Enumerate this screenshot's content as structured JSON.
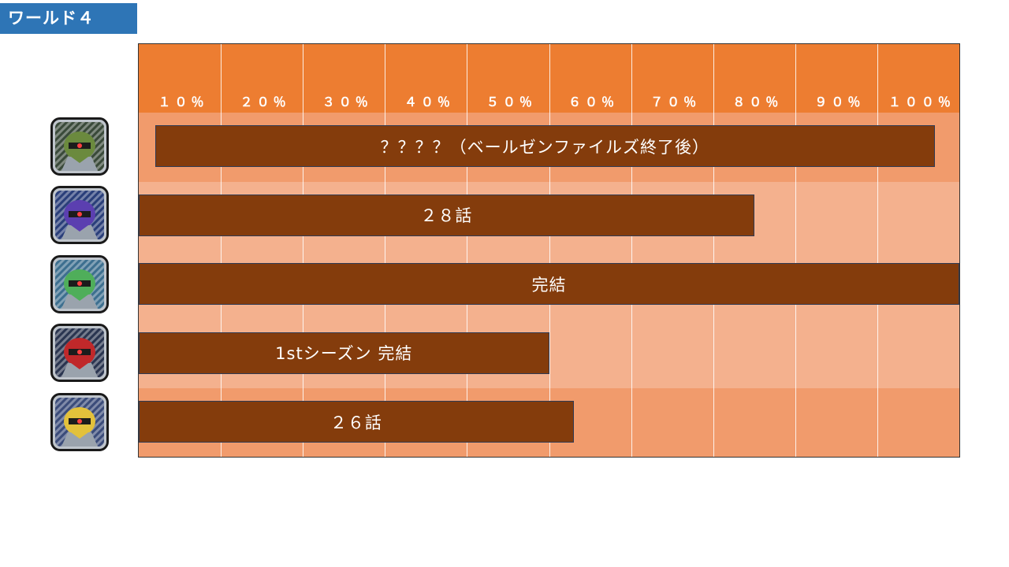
{
  "world_label": "ワールド４",
  "chart_data": {
    "type": "bar",
    "orientation": "horizontal",
    "xlim": [
      0,
      100
    ],
    "x_tick_labels": [
      "１０％",
      "２０％",
      "３０％",
      "４０％",
      "５０％",
      "６０％",
      "７０％",
      "８０％",
      "９０％",
      "１００％"
    ],
    "categories": [
      "row-1",
      "row-2",
      "row-3",
      "row-4",
      "row-5"
    ],
    "bars": [
      {
        "start": 2,
        "end": 97,
        "label": "？？？？（ベールゼンファイルズ終了後）"
      },
      {
        "start": 0,
        "end": 75,
        "label": "２８話"
      },
      {
        "start": 0,
        "end": 100,
        "label": "完結"
      },
      {
        "start": 0,
        "end": 50,
        "label": "1stシーズン 完結"
      },
      {
        "start": 0,
        "end": 53,
        "label": "２６話"
      }
    ],
    "row_band_colors": [
      "#f19b6c",
      "#f4b18e",
      "#f4b18e",
      "#f4b18e",
      "#f19b6c"
    ],
    "header_color": "#ed7d31",
    "bar_color": "#843c0c",
    "grid": true
  },
  "avatars": [
    {
      "icon": "green-helmet-robot-icon",
      "bg": "#3a4a3a",
      "accent": "#6b8a3e"
    },
    {
      "icon": "blue-purple-robot-icon",
      "bg": "#2a3f7a",
      "accent": "#5b3fb0"
    },
    {
      "icon": "green-armored-robot-icon",
      "bg": "#3d6f8f",
      "accent": "#4fae5a"
    },
    {
      "icon": "red-black-robot-icon",
      "bg": "#2a3550",
      "accent": "#c0282a"
    },
    {
      "icon": "white-gold-robot-icon",
      "bg": "#3b4c7a",
      "accent": "#e3c13b"
    }
  ]
}
